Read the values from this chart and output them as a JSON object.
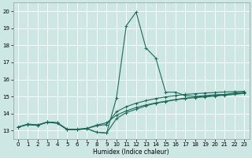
{
  "title": "",
  "xlabel": "Humidex (Indice chaleur)",
  "bg_color": "#cde8e4",
  "line_color": "#1a6b5a",
  "grid_color": "#ffffff",
  "xlim": [
    -0.5,
    23.5
  ],
  "ylim": [
    12.5,
    20.5
  ],
  "xticks": [
    0,
    1,
    2,
    3,
    4,
    5,
    6,
    7,
    8,
    9,
    10,
    11,
    12,
    13,
    14,
    15,
    16,
    17,
    18,
    19,
    20,
    21,
    22,
    23
  ],
  "yticks": [
    13,
    14,
    15,
    16,
    17,
    18,
    19,
    20
  ],
  "series": [
    {
      "x": [
        0,
        1,
        2,
        3,
        4,
        5,
        6,
        7,
        8,
        9,
        10,
        11,
        12,
        13,
        14,
        15,
        16,
        17,
        18,
        19,
        20,
        21,
        22,
        23
      ],
      "y": [
        13.2,
        13.35,
        13.3,
        13.5,
        13.45,
        13.05,
        13.05,
        13.1,
        12.9,
        12.85,
        14.9,
        19.15,
        19.95,
        17.85,
        17.25,
        15.25,
        15.25,
        15.05,
        15.0,
        15.05,
        15.1,
        15.12,
        15.2,
        15.25
      ]
    },
    {
      "x": [
        0,
        1,
        2,
        3,
        4,
        5,
        6,
        7,
        8,
        9,
        10,
        11,
        12,
        13,
        14,
        15,
        16,
        17,
        18,
        19,
        20,
        21,
        22,
        23
      ],
      "y": [
        13.2,
        13.35,
        13.3,
        13.5,
        13.45,
        13.05,
        13.05,
        13.1,
        12.9,
        12.85,
        13.7,
        14.05,
        14.25,
        14.45,
        14.6,
        14.7,
        14.8,
        14.88,
        14.93,
        14.97,
        15.02,
        15.07,
        15.12,
        15.18
      ]
    },
    {
      "x": [
        0,
        1,
        2,
        3,
        4,
        5,
        6,
        7,
        8,
        9,
        10,
        11,
        12,
        13,
        14,
        15,
        16,
        17,
        18,
        19,
        20,
        21,
        22,
        23
      ],
      "y": [
        13.2,
        13.38,
        13.33,
        13.5,
        13.45,
        13.08,
        13.08,
        13.13,
        13.32,
        13.45,
        13.9,
        14.15,
        14.35,
        14.5,
        14.62,
        14.72,
        14.82,
        14.9,
        14.96,
        15.0,
        15.05,
        15.1,
        15.15,
        15.2
      ]
    },
    {
      "x": [
        0,
        1,
        2,
        3,
        4,
        5,
        6,
        7,
        8,
        9,
        10,
        11,
        12,
        13,
        14,
        15,
        16,
        17,
        18,
        19,
        20,
        21,
        22,
        23
      ],
      "y": [
        13.2,
        13.37,
        13.32,
        13.48,
        13.42,
        13.06,
        13.06,
        13.11,
        13.28,
        13.35,
        14.1,
        14.4,
        14.6,
        14.75,
        14.88,
        14.97,
        15.05,
        15.12,
        15.16,
        15.2,
        15.23,
        15.26,
        15.28,
        15.3
      ]
    }
  ]
}
